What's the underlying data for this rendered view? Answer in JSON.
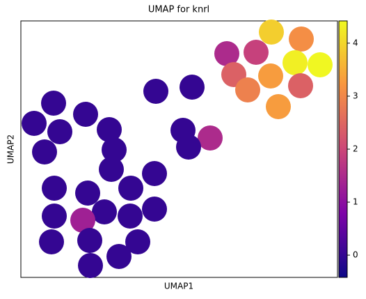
{
  "chart_data": {
    "type": "scatter",
    "title": "UMAP for knrl",
    "xlabel": "UMAP1",
    "ylabel": "UMAP2",
    "x": [
      360,
      403,
      296,
      338,
      394,
      430,
      306,
      359,
      326,
      402,
      370,
      194,
      246,
      47,
      93,
      19,
      56,
      127,
      233,
      272,
      34,
      134,
      241,
      130,
      192,
      48,
      96,
      158,
      120,
      192,
      48,
      157,
      89,
      44,
      99,
      168,
      141,
      100
    ],
    "y": [
      352,
      342,
      321,
      323,
      308,
      305,
      291,
      289,
      269,
      275,
      245,
      267,
      273,
      250,
      234,
      221,
      209,
      212,
      211,
      200,
      180,
      183,
      187,
      155,
      149,
      128,
      121,
      128,
      94,
      98,
      88,
      88,
      82,
      51,
      53,
      51,
      30,
      17
    ],
    "values": [
      3.9,
      3.1,
      1.5,
      1.9,
      4.3,
      4.4,
      2.4,
      3.3,
      2.9,
      2.4,
      3.3,
      0,
      0,
      0,
      0,
      0,
      0,
      0,
      0,
      1.5,
      0,
      0,
      0,
      0,
      0,
      0,
      0,
      0,
      0,
      0,
      0,
      0,
      1.3,
      0,
      0,
      0,
      0,
      0
    ],
    "xlim": [
      0,
      455
    ],
    "ylim": [
      0,
      368
    ],
    "colormap": "plasma",
    "clim": [
      -0.42,
      4.42
    ],
    "cticks": [
      0,
      1,
      2,
      3,
      4
    ]
  }
}
